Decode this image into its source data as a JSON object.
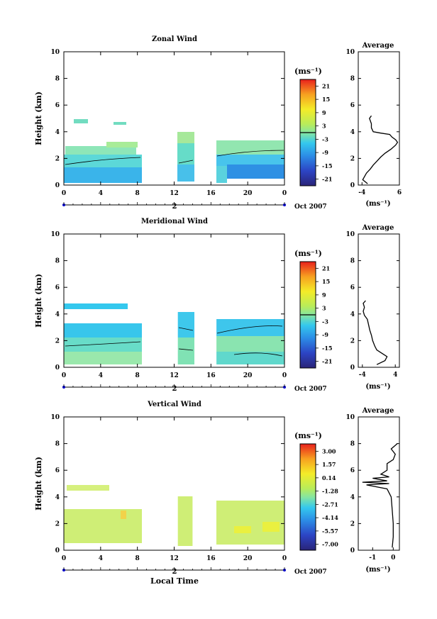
{
  "figure": {
    "date_label": "Oct 2007",
    "day_label": "2",
    "xlabel_bottom": "Local Time",
    "avg_title": "Average",
    "avg_unit": "(ms⁻¹)",
    "cb_unit": "(ms⁻¹)",
    "ylabel": "Height (km)"
  },
  "chart_data": [
    {
      "type": "heatmap",
      "title": "Zonal Wind",
      "xlabel": "",
      "ylabel": "Height (km)",
      "xlim": [
        0,
        24
      ],
      "ylim": [
        0,
        10
      ],
      "xticklabels": [
        "0",
        "4",
        "8",
        "12",
        "16",
        "20",
        "0"
      ],
      "yticklabels": [
        "0",
        "2",
        "4",
        "6",
        "8",
        "10"
      ],
      "data_gaps_hours": [
        [
          8.5,
          12.0
        ],
        [
          14.2,
          16.4
        ]
      ],
      "colorbar": {
        "unit": "(ms⁻¹)",
        "ticks": [
          "21",
          "15",
          "9",
          "3",
          "-3",
          "-9",
          "-15",
          "-21"
        ]
      },
      "average_profile": {
        "title": "Average",
        "xlabel": "(ms⁻¹)",
        "xlim": [
          -5,
          6
        ],
        "xticklabels": [
          "-4",
          "6"
        ],
        "points": [
          [
            -2.5,
            0.1
          ],
          [
            -3.8,
            0.4
          ],
          [
            -3.2,
            0.7
          ],
          [
            -2.8,
            0.9
          ],
          [
            -1.8,
            1.2
          ],
          [
            -1.0,
            1.5
          ],
          [
            0.0,
            1.8
          ],
          [
            1.0,
            2.1
          ],
          [
            2.2,
            2.4
          ],
          [
            3.8,
            2.7
          ],
          [
            5.0,
            3.0
          ],
          [
            5.5,
            3.2
          ],
          [
            5.0,
            3.4
          ],
          [
            4.0,
            3.6
          ],
          [
            3.4,
            3.8
          ],
          [
            1.0,
            3.9
          ],
          [
            -1.0,
            4.0
          ],
          [
            -1.5,
            4.3
          ],
          [
            -1.5,
            4.6
          ],
          [
            -2.0,
            5.0
          ],
          [
            -1.5,
            5.2
          ]
        ]
      }
    },
    {
      "type": "heatmap",
      "title": "Meridional Wind",
      "xlabel": "",
      "ylabel": "Height (km)",
      "xlim": [
        0,
        24
      ],
      "ylim": [
        0,
        10
      ],
      "xticklabels": [
        "0",
        "4",
        "8",
        "12",
        "16",
        "20",
        "0"
      ],
      "yticklabels": [
        "0",
        "2",
        "4",
        "6",
        "8",
        "10"
      ],
      "data_gaps_hours": [
        [
          8.5,
          12.4
        ],
        [
          14.4,
          16.6
        ]
      ],
      "colorbar": {
        "unit": "(ms⁻¹)",
        "ticks": [
          "21",
          "15",
          "9",
          "3",
          "-3",
          "-9",
          "-15",
          "-21"
        ]
      },
      "average_profile": {
        "title": "Average",
        "xlabel": "(ms⁻¹)",
        "xlim": [
          -5,
          5
        ],
        "xticklabels": [
          "-4",
          "4"
        ],
        "points": [
          [
            -0.5,
            0.2
          ],
          [
            1.5,
            0.5
          ],
          [
            2.0,
            0.8
          ],
          [
            1.0,
            1.0
          ],
          [
            -0.5,
            1.3
          ],
          [
            -1.0,
            1.6
          ],
          [
            -1.5,
            2.0
          ],
          [
            -1.8,
            2.4
          ],
          [
            -2.2,
            2.8
          ],
          [
            -2.5,
            3.2
          ],
          [
            -2.8,
            3.6
          ],
          [
            -3.5,
            3.9
          ],
          [
            -3.8,
            4.2
          ],
          [
            -3.5,
            4.5
          ],
          [
            -3.8,
            4.8
          ],
          [
            -3.2,
            5.0
          ]
        ]
      }
    },
    {
      "type": "heatmap",
      "title": "Vertical Wind",
      "xlabel": "Local Time",
      "ylabel": "Height (km)",
      "xlim": [
        0,
        24
      ],
      "ylim": [
        0,
        10
      ],
      "xticklabels": [
        "0",
        "4",
        "8",
        "12",
        "16",
        "20",
        "0"
      ],
      "yticklabels": [
        "0",
        "2",
        "4",
        "6",
        "8",
        "10"
      ],
      "data_gaps_hours": [
        [
          8.5,
          12.4
        ],
        [
          14.0,
          16.5
        ]
      ],
      "colorbar": {
        "unit": "(ms⁻¹)",
        "ticks": [
          "3.00",
          "1.57",
          "0.14",
          "-1.28",
          "-2.71",
          "-4.14",
          "-5.57",
          "-7.00"
        ]
      },
      "average_profile": {
        "title": "Average",
        "xlabel": "(ms⁻¹)",
        "xlim": [
          -1.7,
          0.3
        ],
        "xticklabels": [
          "-1",
          "0"
        ],
        "points": [
          [
            -0.05,
            0.2
          ],
          [
            0.0,
            1.0
          ],
          [
            0.0,
            2.0
          ],
          [
            -0.05,
            3.0
          ],
          [
            -0.1,
            4.0
          ],
          [
            -0.3,
            4.6
          ],
          [
            -1.3,
            4.9
          ],
          [
            -0.2,
            5.0
          ],
          [
            -1.5,
            5.1
          ],
          [
            -0.3,
            5.2
          ],
          [
            -1.0,
            5.4
          ],
          [
            -0.2,
            5.5
          ],
          [
            -0.6,
            5.7
          ],
          [
            -0.3,
            6.0
          ],
          [
            -0.3,
            6.5
          ],
          [
            0.0,
            6.8
          ],
          [
            0.1,
            7.2
          ],
          [
            -0.1,
            7.6
          ],
          [
            0.2,
            8.0
          ]
        ]
      }
    }
  ]
}
